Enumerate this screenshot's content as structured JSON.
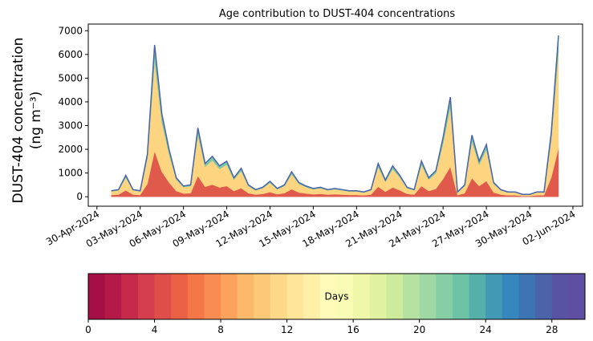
{
  "chart_data": [
    {
      "type": "stacked_area",
      "title": "Age contribution to DUST-404 concentrations",
      "y_label": [
        "DUST-404 concentration",
        "(ng m⁻³)"
      ],
      "x": [
        1.0,
        1.5,
        2.0,
        2.5,
        3.0,
        3.5,
        4.0,
        4.5,
        5.0,
        5.5,
        6.0,
        6.5,
        7.0,
        7.5,
        8.0,
        8.5,
        9.0,
        9.5,
        10.0,
        10.5,
        11.0,
        11.5,
        12.0,
        12.5,
        13.0,
        13.5,
        14.0,
        14.5,
        15.0,
        15.5,
        16.0,
        16.5,
        17.0,
        17.5,
        18.0,
        18.5,
        19.0,
        19.5,
        20.0,
        20.5,
        21.0,
        21.5,
        22.0,
        22.5,
        23.0,
        23.5,
        24.0,
        24.5,
        25.0,
        25.5,
        26.0,
        26.5,
        27.0,
        27.5,
        28.0,
        28.5,
        29.0,
        29.5,
        30.0,
        30.5,
        31.0,
        31.5,
        32.0
      ],
      "series": [
        {
          "color": "#e05a4c",
          "values": [
            75,
            90,
            270,
            90,
            75,
            540,
            1920,
            1050,
            600,
            240,
            135,
            150,
            870,
            420,
            510,
            390,
            450,
            240,
            360,
            150,
            90,
            120,
            195,
            105,
            150,
            315,
            180,
            135,
            105,
            120,
            90,
            105,
            90,
            75,
            75,
            60,
            90,
            420,
            210,
            390,
            270,
            120,
            90,
            450,
            240,
            330,
            750,
            1260,
            60,
            150,
            780,
            450,
            660,
            180,
            90,
            60,
            60,
            30,
            30,
            60,
            60,
            810,
            2040
          ]
        },
        {
          "color": "#fdd47f",
          "values": [
            150,
            180,
            540,
            180,
            150,
            1080,
            3840,
            2100,
            1200,
            480,
            270,
            300,
            1740,
            840,
            1020,
            780,
            900,
            480,
            720,
            300,
            180,
            240,
            390,
            210,
            300,
            630,
            360,
            270,
            210,
            240,
            180,
            210,
            180,
            150,
            150,
            120,
            180,
            840,
            420,
            780,
            540,
            240,
            180,
            900,
            480,
            660,
            1500,
            2520,
            120,
            300,
            1560,
            900,
            1320,
            360,
            180,
            120,
            120,
            60,
            60,
            120,
            120,
            1620,
            4080
          ]
        },
        {
          "color": "#7cc8a4",
          "values": [
            25,
            30,
            90,
            30,
            25,
            180,
            640,
            350,
            200,
            80,
            45,
            50,
            290,
            140,
            170,
            130,
            150,
            80,
            120,
            50,
            30,
            40,
            65,
            35,
            50,
            105,
            60,
            45,
            35,
            40,
            30,
            35,
            30,
            25,
            25,
            20,
            30,
            140,
            70,
            130,
            90,
            40,
            30,
            150,
            80,
            110,
            250,
            420,
            20,
            50,
            260,
            150,
            220,
            60,
            30,
            20,
            20,
            10,
            10,
            20,
            20,
            270,
            680
          ]
        }
      ],
      "line_color": "#4a63a9",
      "xlim": [
        -0.6,
        33.67
      ],
      "xticks": [
        {
          "value": 0,
          "label": "30-Apr-2024"
        },
        {
          "value": 3,
          "label": "03-May-2024"
        },
        {
          "value": 6,
          "label": "06-May-2024"
        },
        {
          "value": 9,
          "label": "09-May-2024"
        },
        {
          "value": 12,
          "label": "12-May-2024"
        },
        {
          "value": 15,
          "label": "15-May-2024"
        },
        {
          "value": 18,
          "label": "18-May-2024"
        },
        {
          "value": 21,
          "label": "21-May-2024"
        },
        {
          "value": 24,
          "label": "24-May-2024"
        },
        {
          "value": 27,
          "label": "27-May-2024"
        },
        {
          "value": 30,
          "label": "30-May-2024"
        },
        {
          "value": 33,
          "label": "02-Jun-2024"
        }
      ],
      "ylim": [
        -400,
        7280
      ],
      "yticks": [
        0,
        1000,
        2000,
        3000,
        4000,
        5000,
        6000,
        7000
      ]
    },
    {
      "type": "colorbar",
      "label": "Days",
      "colors": [
        "#a50f45",
        "#b5194a",
        "#c7294a",
        "#d53e4f",
        "#e04e4a",
        "#ea6145",
        "#f57748",
        "#f98c52",
        "#fba35e",
        "#fdb96b",
        "#fdc978",
        "#fed889",
        "#fee597",
        "#fff0a8",
        "#fffbb8",
        "#f9fcb5",
        "#eef8a8",
        "#e0f2a0",
        "#cdeb9d",
        "#b5e1a1",
        "#9fd8a4",
        "#86cea5",
        "#6cc3a5",
        "#55b0a9",
        "#4199b4",
        "#3587bd",
        "#3d74b3",
        "#4a63a9",
        "#5a52a2",
        "#5e4fa2"
      ],
      "xlim": [
        0,
        30
      ],
      "xticks": [
        0,
        4,
        8,
        12,
        16,
        20,
        24,
        28
      ]
    }
  ]
}
